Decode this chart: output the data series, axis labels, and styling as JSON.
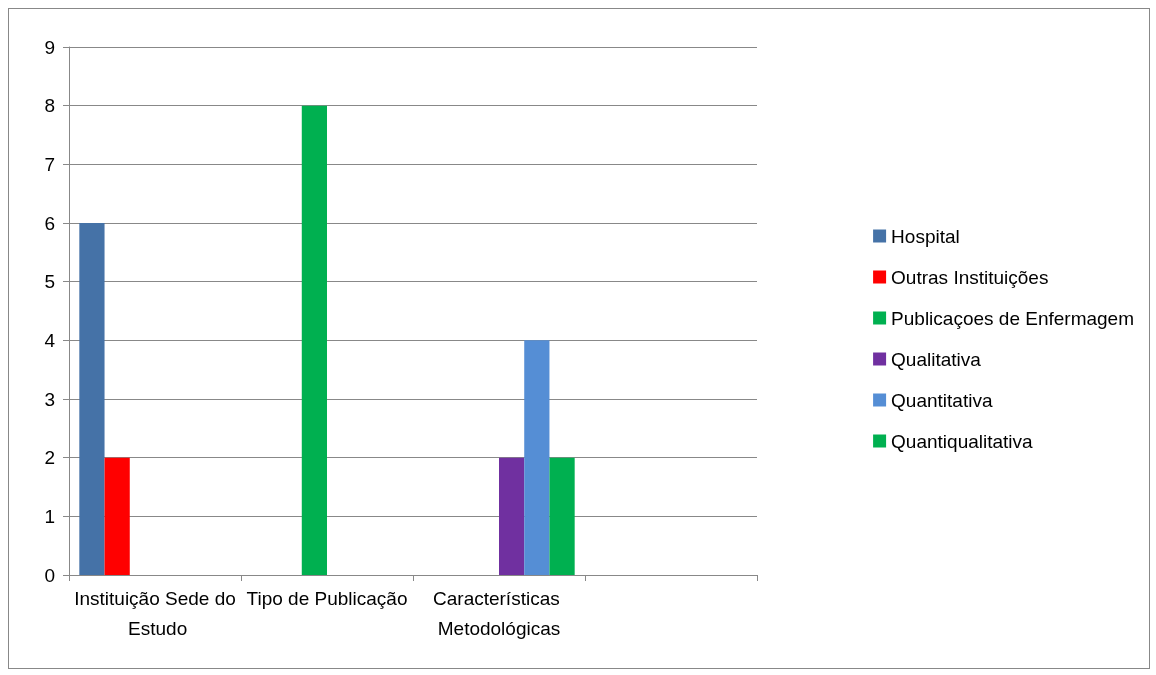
{
  "chart_data": {
    "type": "bar",
    "categories": [
      "Instituição Sede do Estudo",
      "Tipo de Publicação",
      "Características Metodológicas",
      null
    ],
    "series": [
      {
        "name": "Hospital",
        "color": "#4572a7",
        "values": [
          6,
          null,
          null,
          null
        ]
      },
      {
        "name": "Outras Instituições",
        "color": "#ff0000",
        "values": [
          2,
          null,
          null,
          null
        ]
      },
      {
        "name": "Publicaçoes de Enfermagem",
        "color": "#00b050",
        "values": [
          null,
          8,
          null,
          null
        ]
      },
      {
        "name": "Qualitativa",
        "color": "#7030a0",
        "values": [
          null,
          null,
          2,
          null
        ]
      },
      {
        "name": "Quantitativa",
        "color": "#558ed5",
        "values": [
          null,
          null,
          4,
          null
        ]
      },
      {
        "name": "Quantiqualitativa",
        "color": "#00b050",
        "values": [
          null,
          null,
          2,
          null
        ]
      }
    ],
    "ylim": [
      0,
      9
    ],
    "yticks": [
      0,
      1,
      2,
      3,
      4,
      5,
      6,
      7,
      8,
      9
    ],
    "grid": "y",
    "legend": "right"
  }
}
